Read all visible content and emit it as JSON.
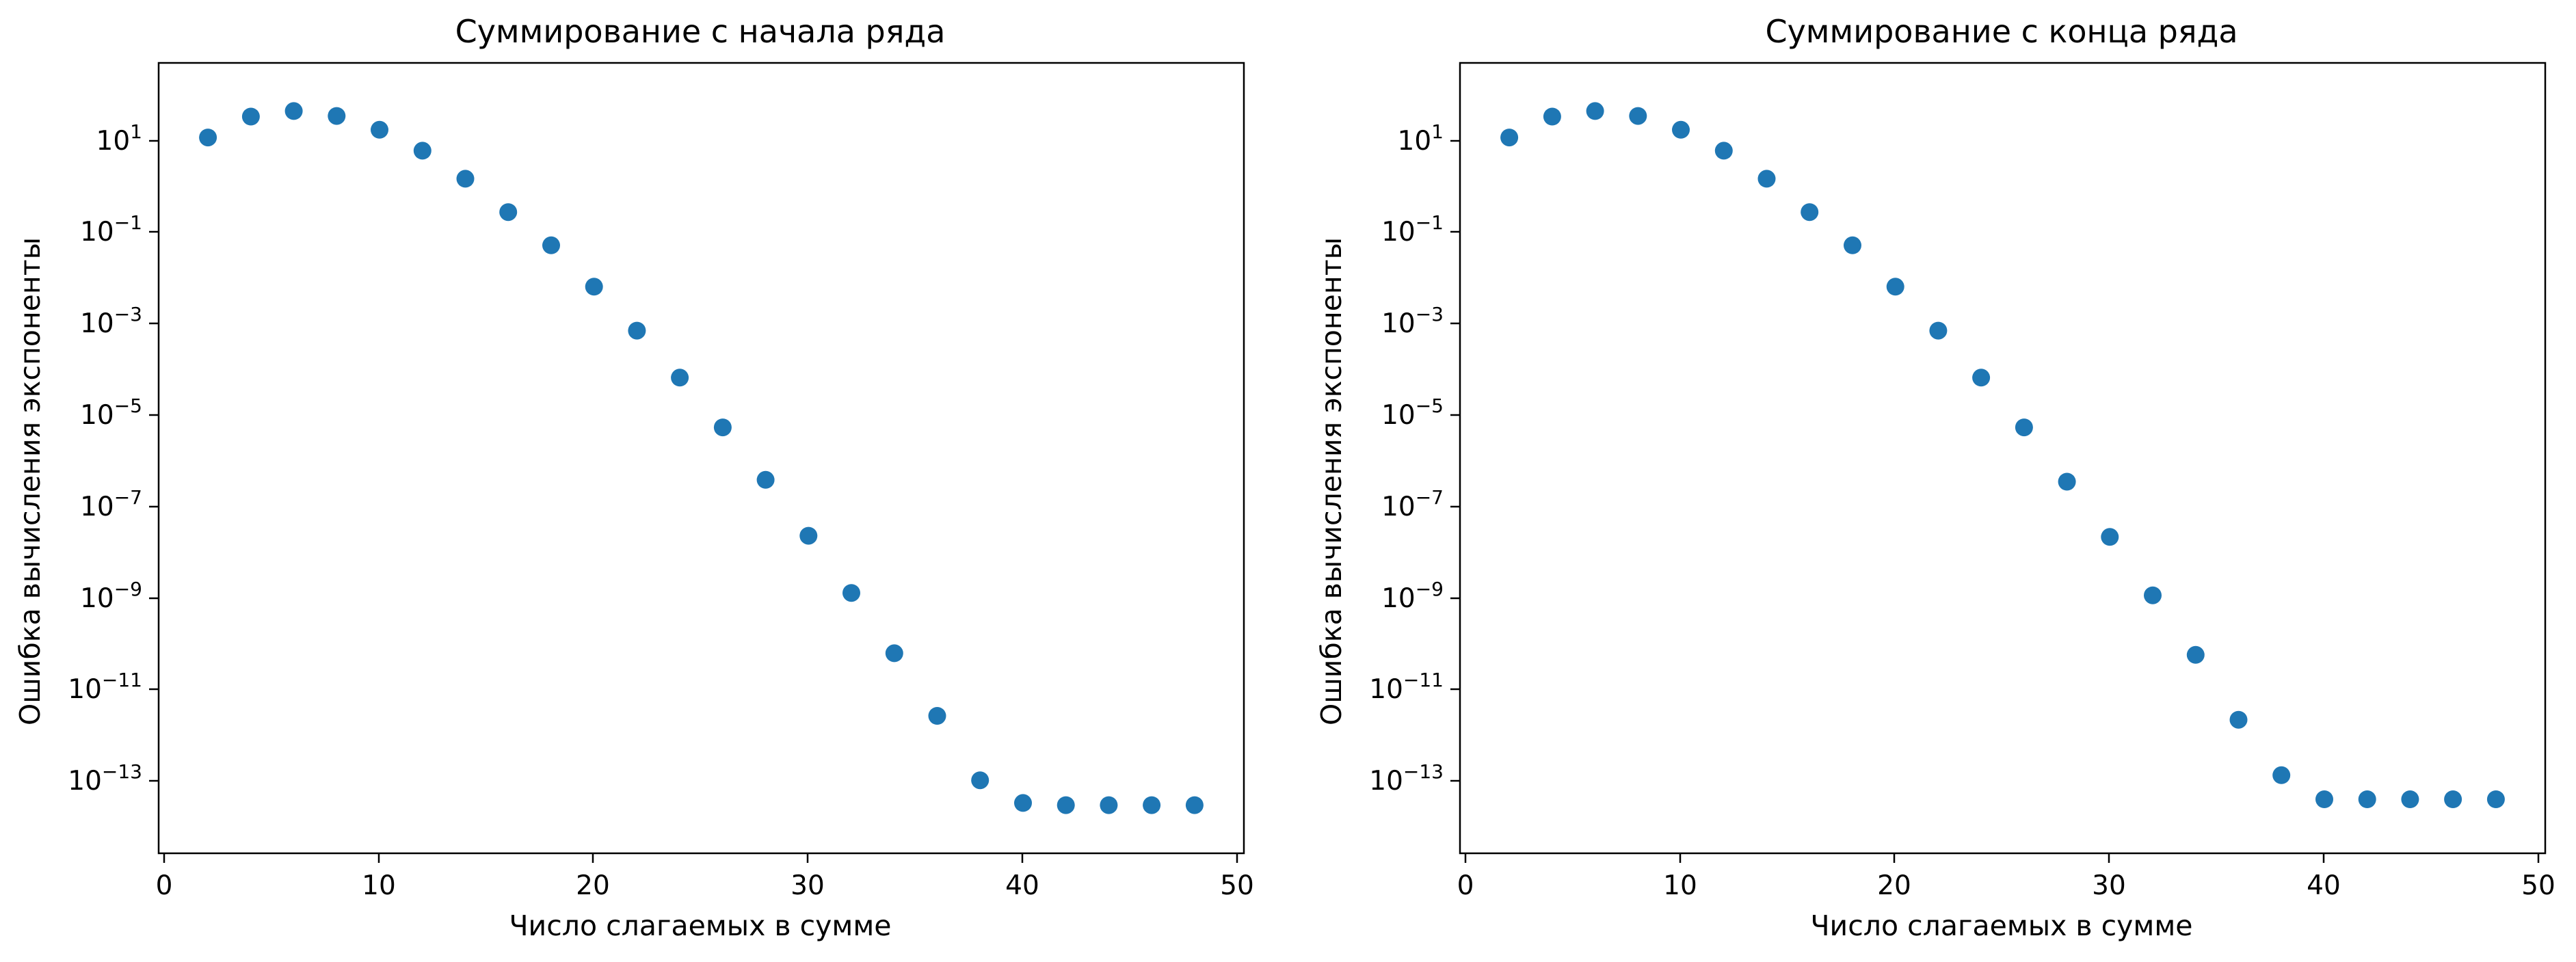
{
  "chart_data": [
    {
      "type": "scatter",
      "title": "Суммирование с начала ряда",
      "xlabel": "Число слагаемых в сумме",
      "ylabel": "Ошибка вычисления экспоненты",
      "xscale": "linear",
      "yscale": "log",
      "xlim": [
        -0.3,
        50.3
      ],
      "ylim": [
        1e-15,
        1000
      ],
      "xticks": [
        "0",
        "10",
        "20",
        "30",
        "40",
        "50"
      ],
      "yticks": [
        "10",
        "10",
        "10",
        "10",
        "10",
        "10",
        "10",
        "10"
      ],
      "ytick_exponents": [
        "1",
        "−1",
        "−3",
        "−5",
        "−7",
        "−9",
        "−11",
        "−13"
      ],
      "ytick_values": [
        10,
        0.1,
        0.001,
        1e-05,
        1e-07,
        1e-09,
        1e-11,
        1e-13
      ],
      "grid": false,
      "color": "#1f77b4",
      "series": [
        {
          "x": [
            2,
            4,
            6,
            8,
            10,
            12,
            14,
            16,
            18,
            20,
            22,
            24,
            26,
            28,
            30,
            32,
            34,
            36,
            38,
            40,
            42,
            44,
            46,
            48
          ],
          "y": [
            20,
            60,
            80,
            62,
            30,
            10,
            2.3,
            0.4,
            0.07,
            0.008,
            0.0008,
            6.8e-05,
            5e-06,
            3.2e-07,
            1.7e-08,
            8.5e-10,
            3.6e-11,
            1.35e-12,
            4.6e-14,
            1.4e-14,
            1.25e-14,
            1.25e-14,
            1.25e-14,
            1.25e-14
          ]
        }
      ]
    },
    {
      "type": "scatter",
      "title": "Суммирование с конца ряда",
      "xlabel": "Число слагаемых в сумме",
      "ylabel": "Ошибка вычисления экспоненты",
      "xscale": "linear",
      "yscale": "log",
      "xlim": [
        -0.3,
        50.3
      ],
      "ylim": [
        1e-15,
        1000
      ],
      "xticks": [
        "0",
        "10",
        "20",
        "30",
        "40",
        "50"
      ],
      "yticks": [
        "10",
        "10",
        "10",
        "10",
        "10",
        "10",
        "10",
        "10"
      ],
      "ytick_exponents": [
        "1",
        "−1",
        "−3",
        "−5",
        "−7",
        "−9",
        "−11",
        "−13"
      ],
      "ytick_values": [
        10,
        0.1,
        0.001,
        1e-05,
        1e-07,
        1e-09,
        1e-11,
        1e-13
      ],
      "grid": false,
      "color": "#1f77b4",
      "series": [
        {
          "x": [
            2,
            4,
            6,
            8,
            10,
            12,
            14,
            16,
            18,
            20,
            22,
            24,
            26,
            28,
            30,
            32,
            34,
            36,
            38,
            40,
            42,
            44,
            46,
            48
          ],
          "y": [
            20,
            60,
            80,
            62,
            30,
            10,
            2.3,
            0.4,
            0.07,
            0.008,
            0.0008,
            6.8e-05,
            5e-06,
            2.9e-07,
            1.6e-08,
            7.5e-10,
            3.3e-11,
            1.1e-12,
            6e-14,
            1.7e-14,
            1.7e-14,
            1.7e-14,
            1.7e-14,
            1.7e-14
          ]
        }
      ]
    }
  ]
}
